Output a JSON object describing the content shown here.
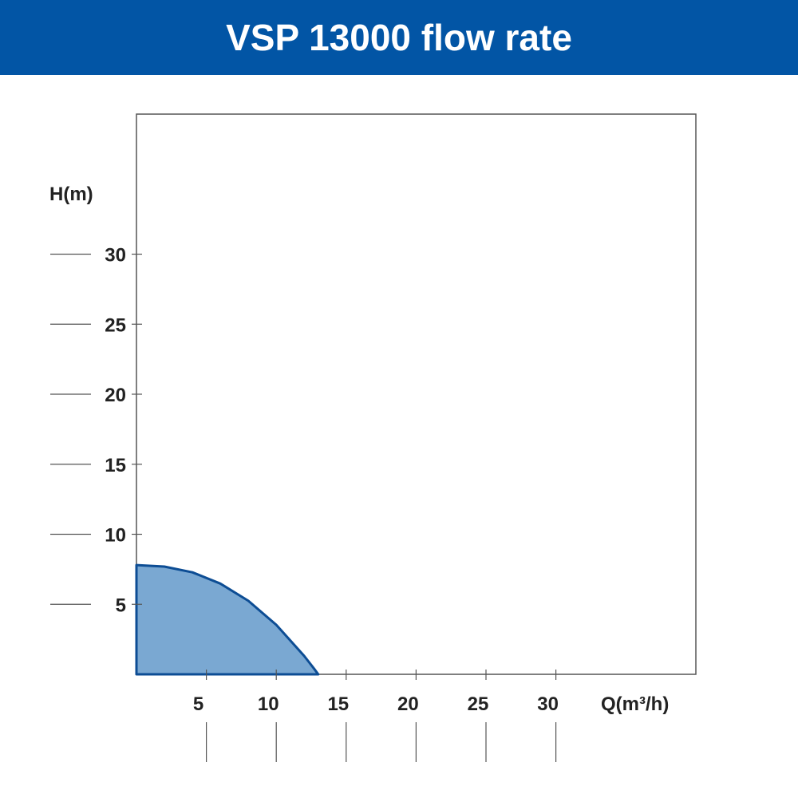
{
  "title": "VSP 13000 flow rate",
  "colors": {
    "banner": "#0255a5",
    "fill": "#7aa8d2",
    "stroke": "#0d4d94"
  },
  "chart_data": {
    "type": "area",
    "title": "VSP 13000 flow rate",
    "xlabel": "Q(m³/h)",
    "ylabel": "H(m)",
    "xlim": [
      0,
      40
    ],
    "ylim": [
      0,
      40
    ],
    "xticks": [
      5,
      10,
      15,
      20,
      25,
      30
    ],
    "yticks": [
      5,
      10,
      15,
      20,
      25,
      30
    ],
    "grid": false,
    "series": [
      {
        "name": "VSP 13000",
        "x": [
          0,
          2,
          4,
          6,
          8,
          10,
          12,
          12.7,
          13
        ],
        "y": [
          7.8,
          7.69,
          7.28,
          6.48,
          5.25,
          3.53,
          1.31,
          0.41,
          0
        ]
      }
    ]
  }
}
